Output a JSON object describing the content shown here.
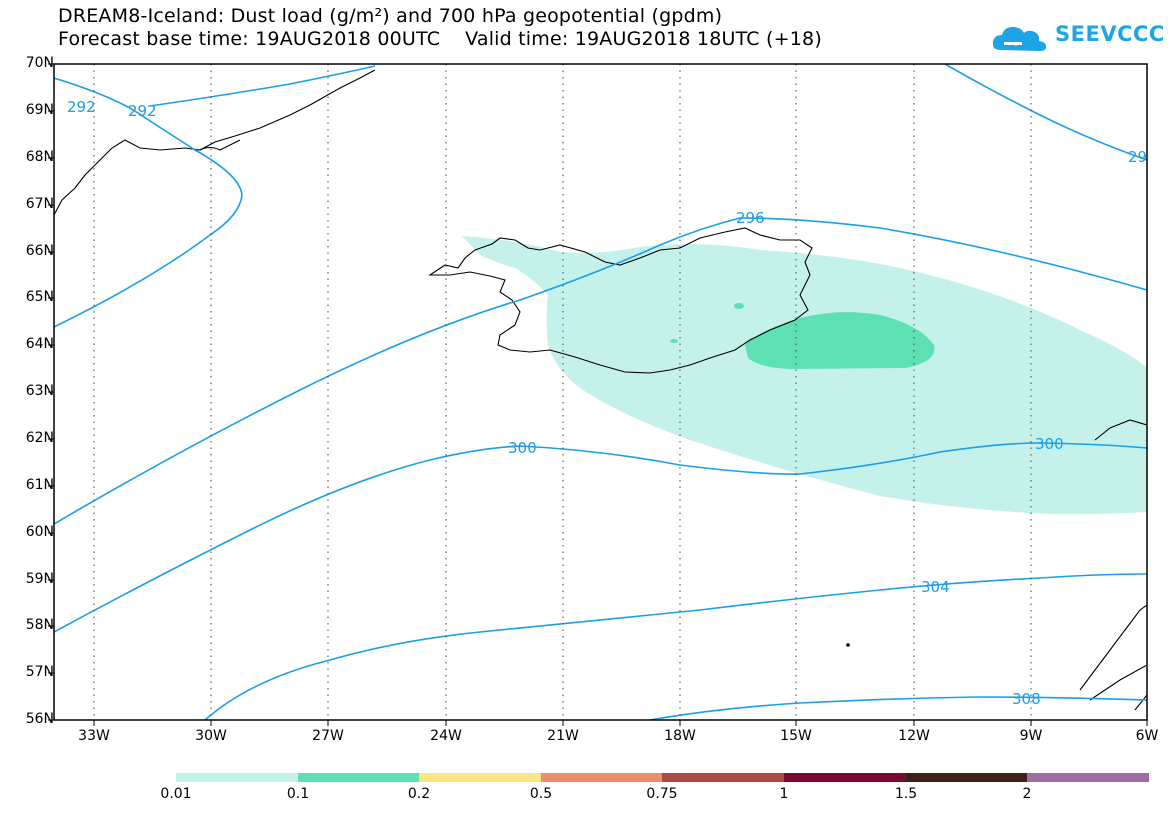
{
  "title_line1": "DREAM8-Iceland: Dust load (g/m²) and 700 hPa geopotential (gpdm)",
  "title_line2": "Forecast base time: 19AUG2018 00UTC    Valid time: 19AUG2018 18UTC (+18)",
  "logo_text": "SEEVCCC",
  "lat_labels": [
    "70N",
    "69N",
    "68N",
    "67N",
    "66N",
    "65N",
    "64N",
    "63N",
    "62N",
    "61N",
    "60N",
    "59N",
    "58N",
    "57N",
    "56N"
  ],
  "lon_labels": [
    "33W",
    "30W",
    "27W",
    "24W",
    "21W",
    "18W",
    "15W",
    "12W",
    "9W",
    "6W"
  ],
  "contour_labels": [
    "292",
    "292",
    "296",
    "300",
    "300",
    "304",
    "308",
    "29"
  ],
  "colorbar": {
    "labels": [
      "0.01",
      "0.1",
      "0.2",
      "0.5",
      "0.75",
      "1",
      "1.5",
      "2"
    ],
    "colors": [
      "#c5f1eb",
      "#5ce0b4",
      "#f7e784",
      "#e98f6c",
      "#a84c44",
      "#7a0c33",
      "#3a2216",
      "#9c6fa4"
    ]
  },
  "colors": {
    "contour": "#1a9fe8",
    "dust_low": "#c5f1eb",
    "dust_mid": "#5ce0b4",
    "coast": "#000000"
  }
}
